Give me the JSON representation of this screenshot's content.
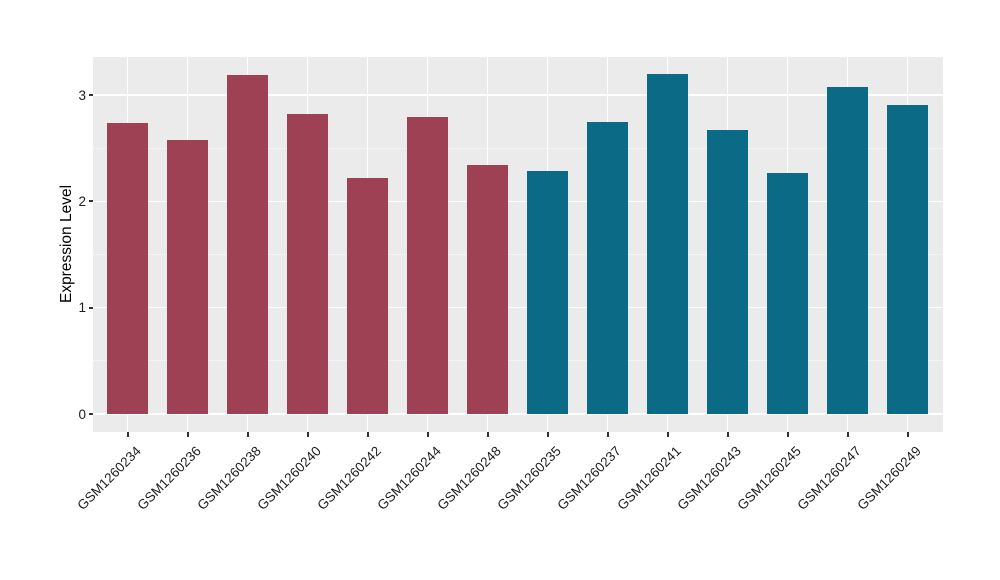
{
  "chart_data": {
    "type": "bar",
    "title": "",
    "xlabel": "",
    "ylabel": "Expression Level",
    "ylim": [
      0,
      3.36
    ],
    "yticks": [
      0,
      1,
      2,
      3
    ],
    "minor_yticks": [
      0.5,
      1.5,
      2.5
    ],
    "grid": true,
    "legend_position": "none",
    "panel_bg": "#EBEBEB",
    "grid_major_color": "#FFFFFF",
    "grid_minor_color": "#F4F4F4",
    "tick_mark_color": "#333333",
    "axis_text_color": "#1F1F1F",
    "categories": [
      "GSM1260234",
      "GSM1260236",
      "GSM1260238",
      "GSM1260240",
      "GSM1260242",
      "GSM1260244",
      "GSM1260248",
      "GSM1260235",
      "GSM1260237",
      "GSM1260241",
      "GSM1260243",
      "GSM1260245",
      "GSM1260247",
      "GSM1260249"
    ],
    "values": [
      2.74,
      2.58,
      3.19,
      2.82,
      2.22,
      2.79,
      2.34,
      2.29,
      2.75,
      3.2,
      2.67,
      2.27,
      3.08,
      2.91
    ],
    "groups": [
      "group1",
      "group1",
      "group1",
      "group1",
      "group1",
      "group1",
      "group1",
      "group2",
      "group2",
      "group2",
      "group2",
      "group2",
      "group2",
      "group2"
    ],
    "group_colors": {
      "group1": "#9E4154",
      "group2": "#0B6A86"
    }
  }
}
